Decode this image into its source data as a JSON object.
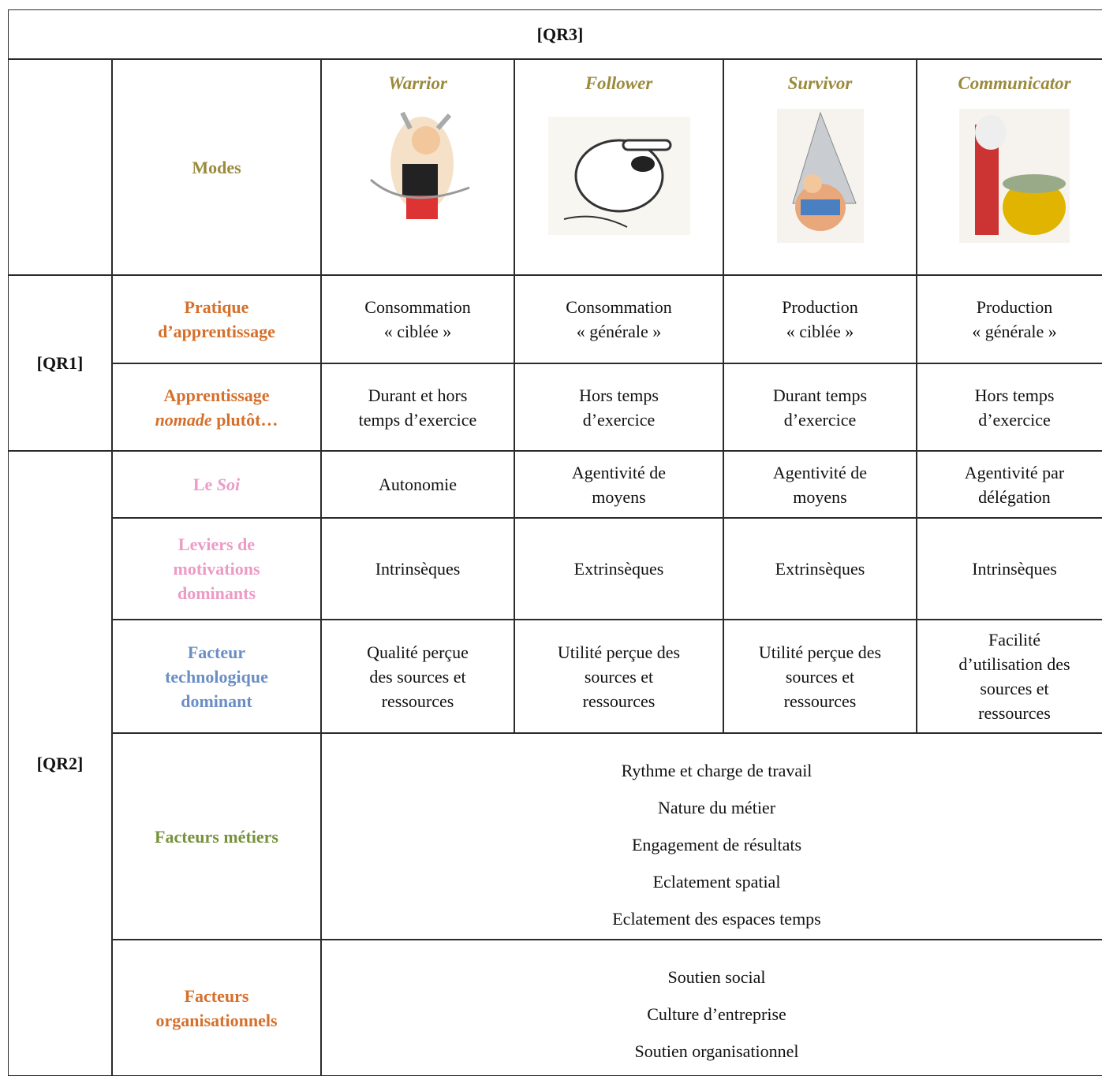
{
  "header": {
    "title": "[QR3]"
  },
  "modes": {
    "label": "Modes",
    "columns": [
      "Warrior",
      "Follower",
      "Survivor",
      "Communicator"
    ],
    "color": "#9b8a3c"
  },
  "groups": [
    {
      "label": "[QR1]"
    },
    {
      "label": "[QR2]"
    }
  ],
  "rows": [
    {
      "label": [
        [
          "Pratique"
        ],
        [
          "d’apprentissage"
        ]
      ],
      "color": "#d5702c",
      "cells": [
        [
          "Consommation",
          "« ciblée »"
        ],
        [
          "Consommation",
          "« générale »"
        ],
        [
          "Production",
          "« ciblée »"
        ],
        [
          "Production",
          "« générale »"
        ]
      ]
    },
    {
      "label": [
        [
          "Apprentissage"
        ],
        [
          {
            "text": "nomade",
            "italic": true
          },
          " plutôt…"
        ]
      ],
      "color": "#d5702c",
      "cells": [
        [
          "Durant et hors",
          "temps d’exercice"
        ],
        [
          "Hors temps",
          "d’exercice"
        ],
        [
          "Durant temps",
          "d’exercice"
        ],
        [
          "Hors temps",
          "d’exercice"
        ]
      ]
    },
    {
      "label": [
        [
          "Le ",
          {
            "text": "Soi",
            "italic": true
          }
        ]
      ],
      "color": "#ec9ac6",
      "cells": [
        [
          "Autonomie"
        ],
        [
          "Agentivité de",
          "moyens"
        ],
        [
          "Agentivité de",
          "moyens"
        ],
        [
          "Agentivité par",
          "délégation"
        ]
      ]
    },
    {
      "label": [
        [
          "Leviers de"
        ],
        [
          "motivations"
        ],
        [
          "dominants"
        ]
      ],
      "color": "#ec9ac6",
      "cells": [
        [
          "Intrinsèques"
        ],
        [
          "Extrinsèques"
        ],
        [
          "Extrinsèques"
        ],
        [
          "Intrinsèques"
        ]
      ]
    },
    {
      "label": [
        [
          "Facteur"
        ],
        [
          "technologique"
        ],
        [
          "dominant"
        ]
      ],
      "color": "#6b8ec4",
      "cells": [
        [
          "Qualité perçue",
          "des sources et",
          "ressources"
        ],
        [
          "Utilité perçue des",
          "sources et",
          "ressources"
        ],
        [
          "Utilité perçue des",
          "sources et",
          "ressources"
        ],
        [
          "Facilité",
          "d’utilisation des",
          "sources et",
          "ressources"
        ]
      ]
    },
    {
      "label": [
        [
          "Facteurs métiers"
        ]
      ],
      "color": "#77923c",
      "items": [
        "Rythme et charge de travail",
        "Nature du métier",
        "Engagement de résultats",
        "Eclatement spatial",
        "Eclatement des espaces temps"
      ]
    },
    {
      "label": [
        [
          "Facteurs"
        ],
        [
          "organisationnels"
        ]
      ],
      "color": "#d5702c",
      "items": [
        "Soutien social",
        "Culture d’entreprise",
        "Soutien organisationnel"
      ]
    }
  ]
}
